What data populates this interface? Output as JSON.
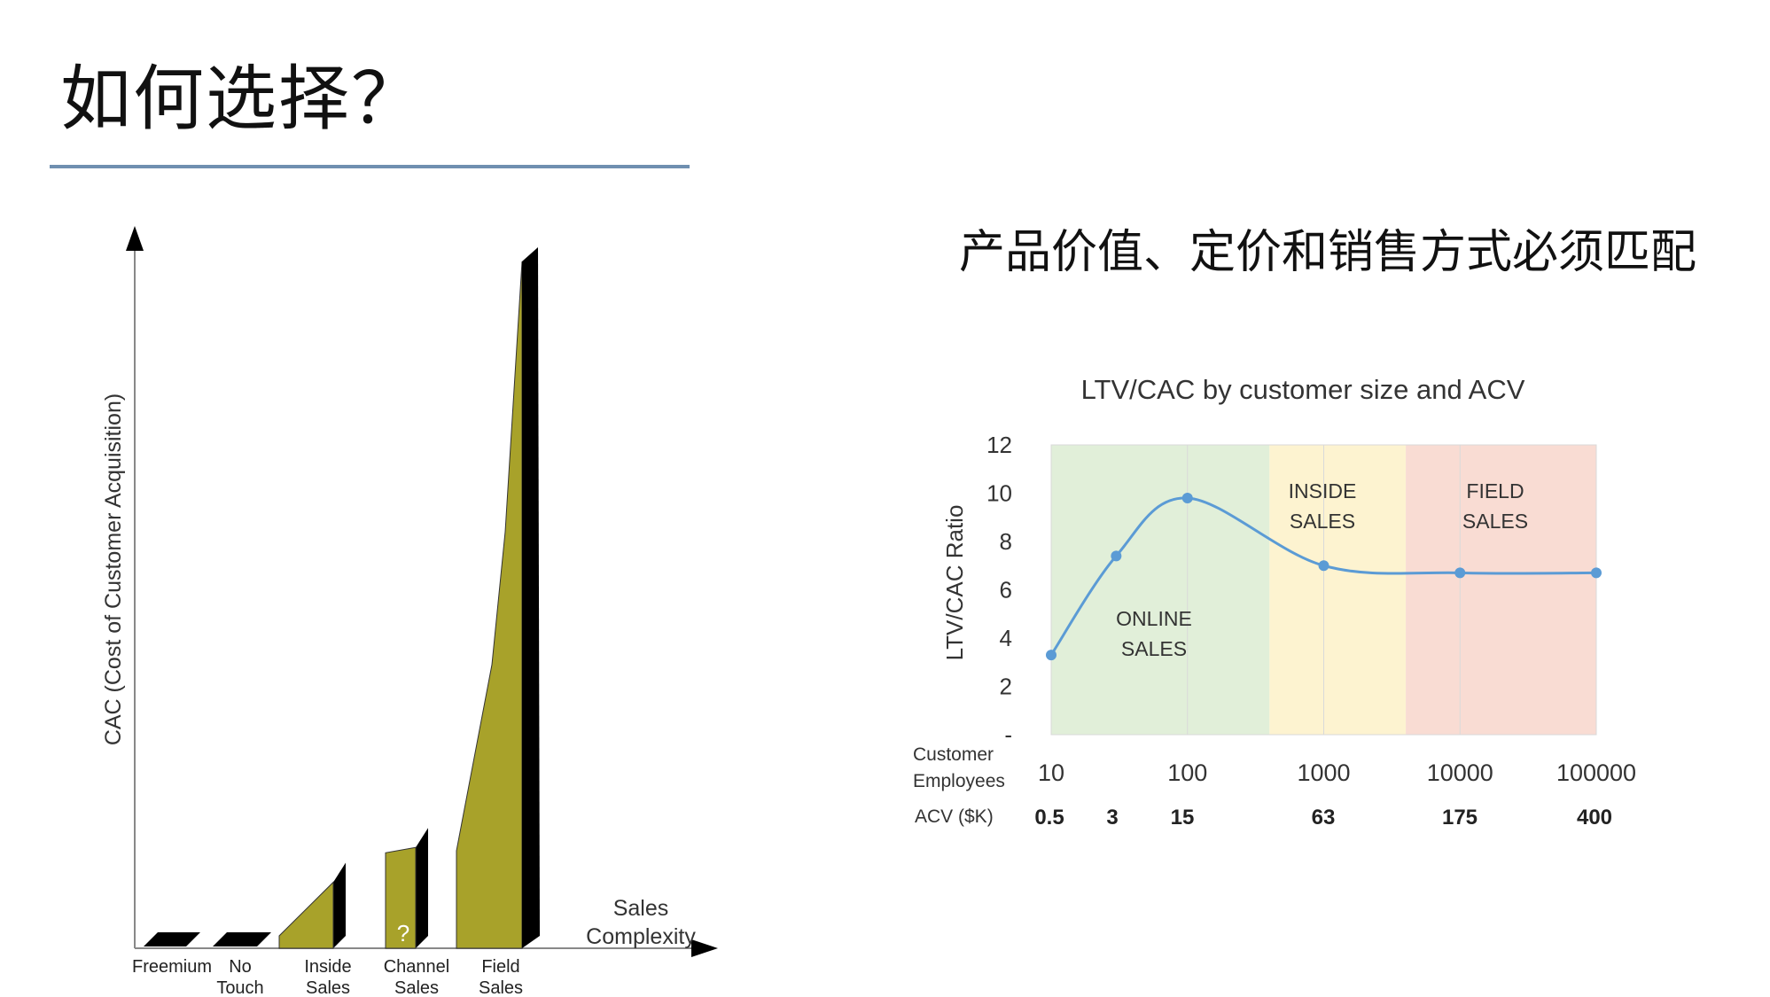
{
  "slide": {
    "title": "如何选择？",
    "subtitle": "产品价值、定价和销售方式必须匹配"
  },
  "chart_data": [
    {
      "type": "area",
      "title": "",
      "ylabel": "CAC (Cost of Customer Acquisition)",
      "xlabel": "Sales Complexity",
      "xlabel_lines": [
        "Sales",
        "Complexity"
      ],
      "color": "#a8a22a",
      "categories": [
        {
          "lines": [
            "Freemium"
          ],
          "value": 0.3
        },
        {
          "lines": [
            "No",
            "Touch"
          ],
          "value": 0.3
        },
        {
          "lines": [
            "Inside",
            "Sales"
          ],
          "value": 1.0
        },
        {
          "lines": [
            "Channel",
            "Sales"
          ],
          "value": 1.5,
          "marker": "?"
        },
        {
          "lines": [
            "Field",
            "Sales"
          ],
          "value": 10.0
        }
      ]
    },
    {
      "type": "line",
      "title": "LTV/CAC by customer size and ACV",
      "ylabel": "LTV/CAC Ratio",
      "ylim": [
        0,
        12
      ],
      "yticks": [
        "-",
        "2",
        "4",
        "6",
        "8",
        "10",
        "12"
      ],
      "xscale": "log",
      "x_row_label_lines": [
        "Customer",
        "Employees"
      ],
      "x_ticks": [
        "10",
        "100",
        "1000",
        "10000",
        "100000"
      ],
      "acv_label": "ACV ($K)",
      "acv_values": [
        "0.5",
        "3",
        "15",
        "63",
        "175",
        "400"
      ],
      "series": [
        {
          "x": [
            10,
            30,
            100,
            1000,
            10000,
            100000
          ],
          "y": [
            3.3,
            7.4,
            9.8,
            7.0,
            6.7,
            6.7
          ],
          "color": "#5b9bd5"
        }
      ],
      "zones": [
        {
          "lines": [
            "ONLINE",
            "SALES"
          ],
          "from": 10,
          "to": 400,
          "color": "#e1efd9"
        },
        {
          "lines": [
            "INSIDE",
            "SALES"
          ],
          "from": 400,
          "to": 4000,
          "color": "#fdf3d0"
        },
        {
          "lines": [
            "FIELD",
            "SALES"
          ],
          "from": 4000,
          "to": 100000,
          "color": "#f9dcd3"
        }
      ],
      "grid": "vertical"
    }
  ]
}
